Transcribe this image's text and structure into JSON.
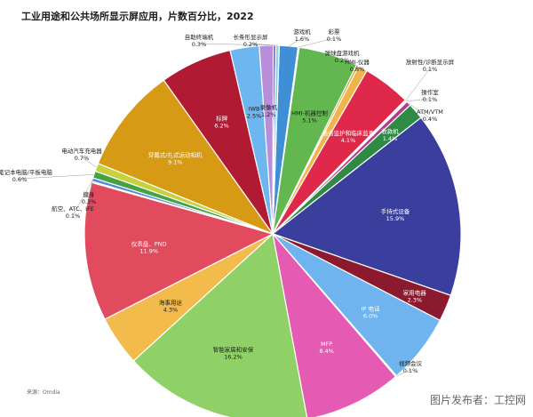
{
  "chart_data": {
    "type": "pie",
    "title": "工业用途和公共场所显示屏应用，片数百分比，2022",
    "slices": [
      {
        "name": "游戏机",
        "value": 1.6,
        "color": "#3f8fd6"
      },
      {
        "name": "彩票",
        "value": 0.1,
        "color": "#6b4c9a"
      },
      {
        "name": "HMI-机器控制",
        "value": 5.1,
        "color": "#62b84f"
      },
      {
        "name": "弹球盘游戏机",
        "value": 0.2,
        "color": "#c9a227"
      },
      {
        "name": "HMI-仪器",
        "value": 0.8,
        "color": "#f0b44a"
      },
      {
        "name": "患者监护和临床监查",
        "value": 4.1,
        "color": "#e0294a"
      },
      {
        "name": "放射性/诊断显示屏",
        "value": 0.1,
        "color": "#8a8a8a"
      },
      {
        "name": "操作室",
        "value": 0.1,
        "color": "#4aa0a0"
      },
      {
        "name": "ATM/VTM",
        "value": 0.4,
        "color": "#b83a8c"
      },
      {
        "name": "收款机",
        "value": 1.4,
        "color": "#2f8a46"
      },
      {
        "name": "手持式设备",
        "value": 15.9,
        "color": "#3a3f9e"
      },
      {
        "name": "家用电器",
        "value": 2.3,
        "color": "#8c1a2e"
      },
      {
        "name": "IP 电话",
        "value": 6.0,
        "color": "#6fb4ef"
      },
      {
        "name": "视频会议",
        "value": 0.1,
        "color": "#b7b7b7"
      },
      {
        "name": "MFP",
        "value": 8.4,
        "color": "#e55bb3"
      },
      {
        "name": "智能家居和安保",
        "value": 16.2,
        "color": "#8fd166"
      },
      {
        "name": "海事用途",
        "value": 4.3,
        "color": "#f2bb4c"
      },
      {
        "name": "仪表盘、PND",
        "value": 11.9,
        "color": "#e24a5e"
      },
      {
        "name": "航空、ATC、IFE",
        "value": 0.1,
        "color": "#a22222"
      },
      {
        "name": "健身",
        "value": 0.3,
        "color": "#4c8ad1"
      },
      {
        "name": "三防笔记本电脑/平板电脑",
        "value": 0.6,
        "color": "#45a046"
      },
      {
        "name": "电动汽车充电器",
        "value": 0.7,
        "color": "#c7d13b"
      },
      {
        "name": "穿戴式/扎式运动相机",
        "value": 9.1,
        "color": "#d69a14"
      },
      {
        "name": "标牌",
        "value": 6.2,
        "color": "#b01a33"
      },
      {
        "name": "IWB",
        "value": 2.5,
        "color": "#6db6f0"
      },
      {
        "name": "录像机",
        "value": 1.2,
        "color": "#b88dd9"
      },
      {
        "name": "长条形显示屏",
        "value": 0.2,
        "color": "#4a3aa0"
      },
      {
        "name": "自助终端机",
        "value": 0.3,
        "color": "#8fd6e6"
      }
    ],
    "legend": "none"
  },
  "source": "来源：Omdia",
  "watermark": "图片发布者：工控网"
}
